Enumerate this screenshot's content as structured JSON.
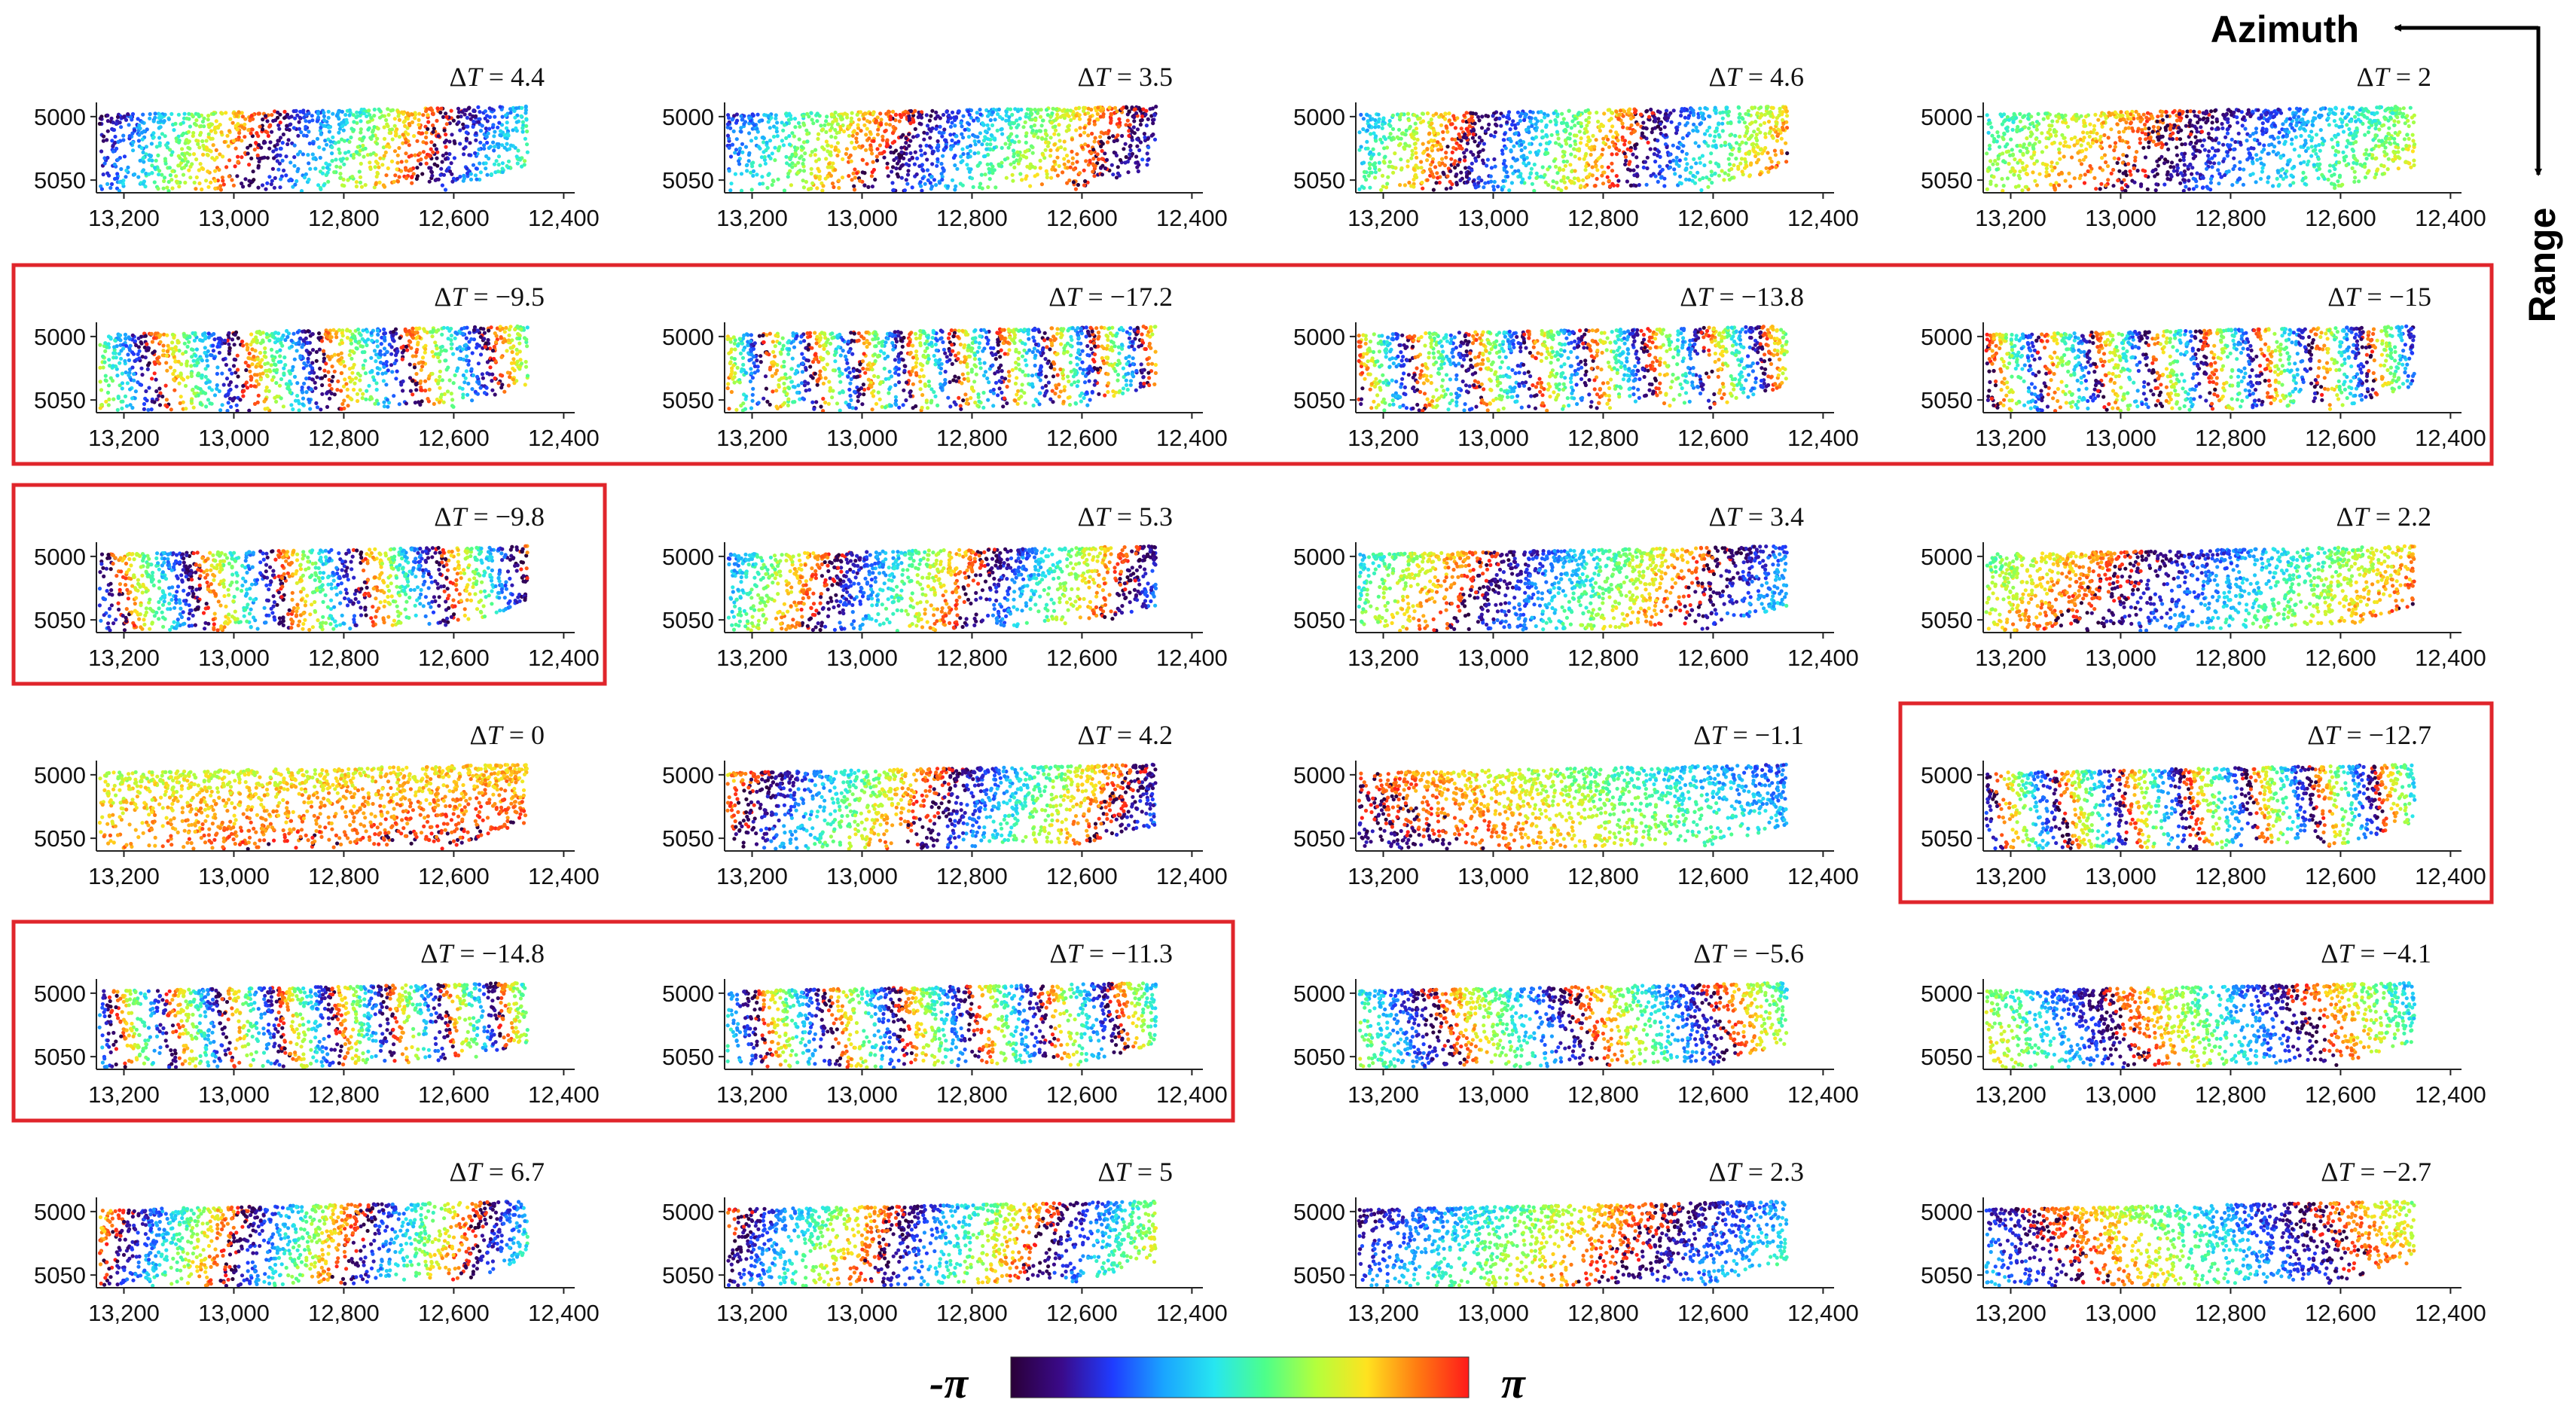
{
  "figure": {
    "azimuth_label": "Azimuth",
    "range_label": "Range",
    "colorbar": {
      "min_label": "-π",
      "max_label": "π"
    },
    "highlight_color": "#e0252b",
    "colormap": [
      "#2a0038",
      "#3a0a8a",
      "#1f3cff",
      "#1aa4ff",
      "#27e6f0",
      "#4dff8a",
      "#b4ff3c",
      "#ffe21f",
      "#ff7a12",
      "#ff1a1a"
    ],
    "x_ticks": [
      "13,200",
      "13,000",
      "12,800",
      "12,600",
      "12,400"
    ],
    "y_ticks": [
      "5000",
      "5050"
    ]
  },
  "chart_data": {
    "type": "scatter",
    "layout": "6x4 grid of interferogram phase panels",
    "x_axis": {
      "ticks": [
        13200,
        13000,
        12800,
        12600,
        12400
      ],
      "range": [
        13250,
        12380
      ],
      "reversed": true
    },
    "y_axis": {
      "ticks": [
        5000,
        5050
      ],
      "range": [
        4990,
        5060
      ],
      "reversed": true
    },
    "color_scale": {
      "min": "-π",
      "max": "π",
      "colormap": "jet-like"
    },
    "panels": [
      {
        "delta_t": "4.4",
        "highlighted": false
      },
      {
        "delta_t": "3.5",
        "highlighted": false
      },
      {
        "delta_t": "4.6",
        "highlighted": false
      },
      {
        "delta_t": "2",
        "highlighted": false
      },
      {
        "delta_t": "−9.5",
        "highlighted": true
      },
      {
        "delta_t": "−17.2",
        "highlighted": true
      },
      {
        "delta_t": "−13.8",
        "highlighted": true
      },
      {
        "delta_t": "−15",
        "highlighted": true
      },
      {
        "delta_t": "−9.8",
        "highlighted": true
      },
      {
        "delta_t": "5.3",
        "highlighted": false
      },
      {
        "delta_t": "3.4",
        "highlighted": false
      },
      {
        "delta_t": "2.2",
        "highlighted": false
      },
      {
        "delta_t": "0",
        "highlighted": false
      },
      {
        "delta_t": "4.2",
        "highlighted": false
      },
      {
        "delta_t": "−1.1",
        "highlighted": false
      },
      {
        "delta_t": "−12.7",
        "highlighted": true
      },
      {
        "delta_t": "−14.8",
        "highlighted": true
      },
      {
        "delta_t": "−11.3",
        "highlighted": true
      },
      {
        "delta_t": "−5.6",
        "highlighted": false
      },
      {
        "delta_t": "−4.1",
        "highlighted": false
      },
      {
        "delta_t": "6.7",
        "highlighted": false
      },
      {
        "delta_t": "5",
        "highlighted": false
      },
      {
        "delta_t": "2.3",
        "highlighted": false
      },
      {
        "delta_t": "−2.7",
        "highlighted": false
      }
    ],
    "highlight_groups": [
      {
        "panels": [
          4,
          5,
          6,
          7
        ]
      },
      {
        "panels": [
          8
        ]
      },
      {
        "panels": [
          15
        ]
      },
      {
        "panels": [
          16,
          17
        ]
      }
    ]
  }
}
